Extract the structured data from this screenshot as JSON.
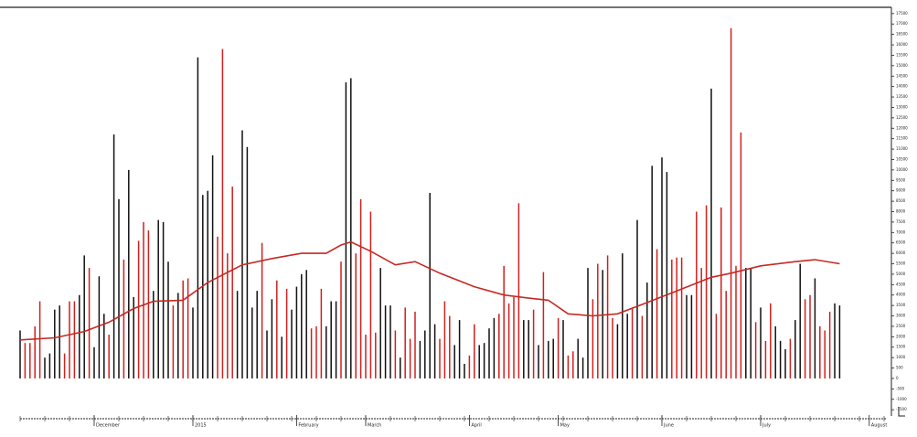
{
  "chart_data": {
    "type": "bar",
    "categories": [
      null,
      null,
      null,
      null,
      null,
      null,
      null,
      null,
      null,
      null,
      null,
      null,
      null,
      null,
      null,
      "December",
      null,
      null,
      null,
      null,
      null,
      null,
      null,
      null,
      null,
      null,
      null,
      null,
      null,
      null,
      null,
      null,
      null,
      null,
      null,
      "2015",
      null,
      null,
      null,
      null,
      null,
      null,
      null,
      null,
      null,
      null,
      null,
      null,
      null,
      null,
      null,
      null,
      null,
      null,
      null,
      null,
      "February",
      null,
      null,
      null,
      null,
      null,
      null,
      null,
      null,
      null,
      null,
      null,
      null,
      null,
      "March",
      null,
      null,
      null,
      null,
      null,
      null,
      null,
      null,
      null,
      null,
      null,
      null,
      null,
      null,
      null,
      null,
      null,
      null,
      null,
      null,
      "April",
      null,
      null,
      null,
      null,
      null,
      null,
      null,
      null,
      null,
      null,
      null,
      null,
      null,
      null,
      null,
      null,
      null,
      "May",
      null,
      null,
      null,
      null,
      null,
      null,
      null,
      null,
      null,
      null,
      null,
      null,
      null,
      null,
      null,
      null,
      null,
      null,
      null,
      null,
      "June",
      null,
      null,
      null,
      null,
      null,
      null,
      null,
      null,
      null,
      null,
      null,
      null,
      null,
      null,
      null,
      null,
      null,
      null,
      null,
      "July",
      null,
      null,
      null,
      null,
      null,
      null,
      null,
      null,
      null,
      null,
      null,
      null,
      null,
      null,
      null,
      null,
      null,
      null,
      null,
      null,
      null,
      "August",
      null,
      null,
      null
    ],
    "values": [
      2300,
      1700,
      1700,
      2500,
      3700,
      1000,
      1200,
      3300,
      3500,
      1200,
      3700,
      3700,
      4000,
      5900,
      5300,
      1500,
      4900,
      3100,
      2100,
      11700,
      8600,
      5700,
      10000,
      3900,
      6600,
      7500,
      7100,
      4200,
      7600,
      7500,
      5600,
      3500,
      4100,
      4700,
      4800,
      3400,
      15400,
      8800,
      9000,
      10700,
      6800,
      15800,
      6000,
      9200,
      4200,
      11900,
      11100,
      3400,
      4200,
      6500,
      2300,
      3800,
      4700,
      2000,
      4300,
      3300,
      4400,
      5000,
      5200,
      2400,
      2500,
      4300,
      2500,
      3700,
      3700,
      5600,
      14200,
      14400,
      6000,
      8600,
      2100,
      8000,
      2200,
      5300,
      3500,
      3500,
      2300,
      1000,
      3400,
      1900,
      3200,
      1800,
      2300,
      8900,
      2600,
      1900,
      3700,
      3000,
      1600,
      2800,
      700,
      1100,
      2600,
      1600,
      1700,
      2400,
      2900,
      3100,
      5400,
      3600,
      3900,
      8400,
      2800,
      2800,
      3300,
      1600,
      5100,
      1800,
      1900,
      2900,
      2800,
      1100,
      1300,
      1900,
      1000,
      5300,
      3800,
      5500,
      5200,
      5900,
      2900,
      2600,
      6000,
      3100,
      3400,
      7600,
      3000,
      4600,
      10200,
      6200,
      10600,
      9900,
      5700,
      5800,
      5800,
      4000,
      4000,
      8000,
      5300,
      8300,
      13900,
      3100,
      8200,
      4200,
      16800,
      5400,
      11800,
      5300,
      5300,
      2700,
      3400,
      1800,
      3600,
      2500,
      1800,
      1400,
      1900,
      2800,
      5500,
      3800,
      4000,
      4800,
      2500,
      2300,
      3200,
      3600,
      3500,
      null,
      null,
      null,
      null,
      null,
      null,
      null,
      null,
      null
    ],
    "colors": [
      "#111",
      "#d0201e",
      "#d0201e",
      "#d0201e",
      "#d0201e",
      "#111",
      "#111",
      "#111",
      "#111",
      "#d0201e",
      "#d0201e",
      "#d0201e",
      "#111",
      "#111",
      "#d0201e",
      "#111",
      "#111",
      "#111",
      "#d0201e",
      "#111",
      "#111",
      "#d0201e",
      "#111",
      "#111",
      "#d0201e",
      "#d0201e",
      "#d0201e",
      "#111",
      "#111",
      "#111",
      "#111",
      "#d0201e",
      "#111",
      "#d0201e",
      "#d0201e",
      "#111",
      "#111",
      "#111",
      "#111",
      "#111",
      "#d0201e",
      "#d0201e",
      "#d0201e",
      "#d0201e",
      "#111",
      "#111",
      "#111",
      "#111",
      "#111",
      "#d0201e",
      "#111",
      "#111",
      "#d0201e",
      "#111",
      "#d0201e",
      "#111",
      "#111",
      "#111",
      "#111",
      "#d0201e",
      "#d0201e",
      "#d0201e",
      "#111",
      "#111",
      "#111",
      "#d0201e",
      "#111",
      "#111",
      "#d0201e",
      "#d0201e",
      "#d0201e",
      "#d0201e",
      "#d0201e",
      "#111",
      "#111",
      "#111",
      "#d0201e",
      "#111",
      "#d0201e",
      "#d0201e",
      "#d0201e",
      "#111",
      "#111",
      "#111",
      "#111",
      "#d0201e",
      "#d0201e",
      "#d0201e",
      "#111",
      "#111",
      "#111",
      "#d0201e",
      "#d0201e",
      "#111",
      "#111",
      "#111",
      "#111",
      "#d0201e",
      "#d0201e",
      "#d0201e",
      "#d0201e",
      "#d0201e",
      "#111",
      "#111",
      "#d0201e",
      "#111",
      "#d0201e",
      "#111",
      "#111",
      "#d0201e",
      "#111",
      "#d0201e",
      "#d0201e",
      "#111",
      "#111",
      "#111",
      "#d0201e",
      "#d0201e",
      "#111",
      "#d0201e",
      "#d0201e",
      "#111",
      "#111",
      "#111",
      "#d0201e",
      "#111",
      "#d0201e",
      "#111",
      "#111",
      "#d0201e",
      "#111",
      "#111",
      "#d0201e",
      "#d0201e",
      "#d0201e",
      "#111",
      "#111",
      "#d0201e",
      "#d0201e",
      "#d0201e",
      "#111",
      "#d0201e",
      "#d0201e",
      "#d0201e",
      "#d0201e",
      "#d0201e",
      "#d0201e",
      "#111",
      "#111",
      "#d0201e",
      "#111",
      "#d0201e",
      "#d0201e",
      "#111",
      "#111",
      "#111",
      "#d0201e",
      "#111",
      "#111",
      "#d0201e",
      "#d0201e",
      "#111",
      "#d0201e",
      "#d0201e",
      "#d0201e",
      "#111",
      "#111",
      null,
      null,
      null,
      null,
      null,
      null,
      null,
      null,
      null
    ],
    "ma": {
      "color": "#c42a23",
      "x": [
        0,
        7,
        13,
        18,
        23,
        27,
        33,
        38,
        45,
        51,
        57,
        62,
        65,
        67,
        71,
        76,
        80,
        85,
        92,
        98,
        103,
        107,
        111,
        116,
        121,
        126,
        133,
        140,
        144,
        150,
        157,
        161,
        166
      ],
      "values": [
        1850,
        1950,
        2250,
        2700,
        3350,
        3700,
        3750,
        4600,
        5450,
        5750,
        6000,
        6000,
        6400,
        6550,
        6100,
        5450,
        5600,
        5050,
        4400,
        4000,
        3850,
        3750,
        3100,
        3000,
        3100,
        3550,
        4200,
        4850,
        5050,
        5400,
        5600,
        5700,
        5500
      ]
    },
    "ylim": [
      -1800,
      17800
    ],
    "yticks": [
      -1500,
      -1000,
      -500,
      0,
      500,
      1000,
      1500,
      2000,
      2500,
      3000,
      3500,
      4000,
      4500,
      5000,
      5500,
      6000,
      6500,
      7000,
      7500,
      8000,
      8500,
      9000,
      9500,
      10000,
      10500,
      11000,
      11500,
      12000,
      12500,
      13000,
      13500,
      14000,
      14500,
      15000,
      15500,
      16000,
      16500,
      17000,
      17500
    ]
  }
}
